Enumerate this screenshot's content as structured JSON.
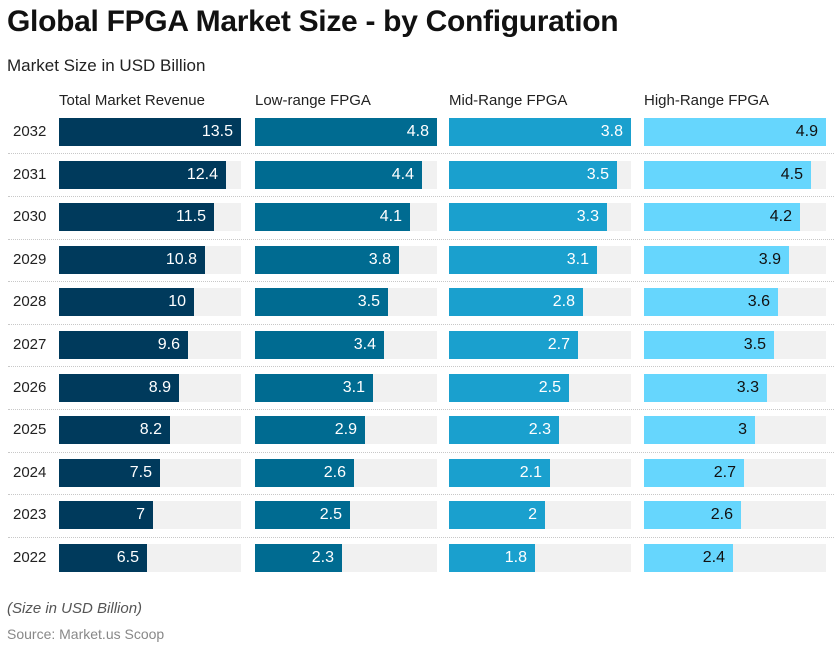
{
  "header": {
    "title": "Global FPGA Market Size - by Configuration",
    "subtitle": "Market Size in USD Billion"
  },
  "footer": {
    "note": "(Size in USD Billion)",
    "source": "Source: Market.us Scoop"
  },
  "chart_data": {
    "type": "bar",
    "orientation": "horizontal",
    "layout": "small-multiples",
    "title": "Global FPGA Market Size - by Configuration",
    "subtitle": "Market Size in USD Billion",
    "unit": "USD Billion",
    "categories": [
      "2032",
      "2031",
      "2030",
      "2029",
      "2028",
      "2027",
      "2026",
      "2025",
      "2024",
      "2023",
      "2022"
    ],
    "series": [
      {
        "name": "Total Market Revenue",
        "color": "#003a5c",
        "label_color": "#ffffff",
        "values": [
          13.5,
          12.4,
          11.5,
          10.8,
          10,
          9.6,
          8.9,
          8.2,
          7.5,
          7,
          6.5
        ]
      },
      {
        "name": "Low-range FPGA",
        "color": "#006b91",
        "label_color": "#ffffff",
        "values": [
          4.8,
          4.4,
          4.1,
          3.8,
          3.5,
          3.4,
          3.1,
          2.9,
          2.6,
          2.5,
          2.3
        ]
      },
      {
        "name": "Mid-Range FPGA",
        "color": "#1aa0ce",
        "label_color": "#ffffff",
        "values": [
          3.8,
          3.5,
          3.3,
          3.1,
          2.8,
          2.7,
          2.5,
          2.3,
          2.1,
          2,
          1.8
        ]
      },
      {
        "name": "High-Range FPGA",
        "color": "#66d6fd",
        "label_color": "#111111",
        "values": [
          4.9,
          4.5,
          4.2,
          3.9,
          3.6,
          3.5,
          3.3,
          3,
          2.7,
          2.6,
          2.4
        ]
      }
    ],
    "track_color": "#f1f1f1",
    "scale": "each column scaled to its own maximum",
    "grid": false,
    "row_separators": "dotted"
  }
}
